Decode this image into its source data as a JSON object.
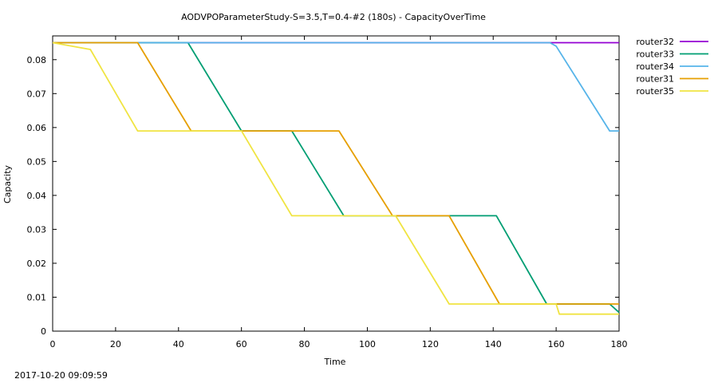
{
  "chart_data": {
    "type": "line",
    "title": "AODVPOParameterStudy-S=3.5,T=0.4-#2 (180s) - CapacityOverTime",
    "xlabel": "Time",
    "ylabel": "Capacity",
    "xlim": [
      0,
      180
    ],
    "ylim": [
      0,
      0.087
    ],
    "xticks": [
      0,
      20,
      40,
      60,
      80,
      100,
      120,
      140,
      160,
      180
    ],
    "yticks": [
      0,
      0.01,
      0.02,
      0.03,
      0.04,
      0.05,
      0.06,
      0.07,
      0.08
    ],
    "ytick_labels": [
      "0",
      "0.01",
      "0.02",
      "0.03",
      "0.04",
      "0.05",
      "0.06",
      "0.07",
      "0.08"
    ],
    "grid": false,
    "legend_position": "outside-right-top",
    "timestamp": "2017-10-20 09:09:59",
    "series": [
      {
        "name": "router32",
        "color": "#9400d3",
        "points": [
          [
            0,
            0.085
          ],
          [
            180,
            0.085
          ]
        ]
      },
      {
        "name": "router33",
        "color": "#009e73",
        "points": [
          [
            0,
            0.085
          ],
          [
            43,
            0.085
          ],
          [
            60,
            0.059
          ],
          [
            76,
            0.059
          ],
          [
            92.5,
            0.034
          ],
          [
            141,
            0.034
          ],
          [
            157,
            0.008
          ],
          [
            177,
            0.008
          ],
          [
            180,
            0.0055
          ]
        ]
      },
      {
        "name": "router34",
        "color": "#56b4e9",
        "points": [
          [
            0,
            0.085
          ],
          [
            158,
            0.085
          ],
          [
            160,
            0.084
          ],
          [
            177,
            0.059
          ],
          [
            180,
            0.059
          ]
        ]
      },
      {
        "name": "router31",
        "color": "#e69f00",
        "points": [
          [
            0,
            0.085
          ],
          [
            27,
            0.085
          ],
          [
            44,
            0.059
          ],
          [
            91,
            0.059
          ],
          [
            108,
            0.034
          ],
          [
            126,
            0.034
          ],
          [
            142,
            0.008
          ],
          [
            180,
            0.008
          ]
        ]
      },
      {
        "name": "router35",
        "color": "#f0e442",
        "points": [
          [
            0,
            0.085
          ],
          [
            12,
            0.083
          ],
          [
            27,
            0.059
          ],
          [
            60,
            0.059
          ],
          [
            76,
            0.034
          ],
          [
            109,
            0.034
          ],
          [
            126,
            0.008
          ],
          [
            160,
            0.008
          ],
          [
            161,
            0.005
          ],
          [
            180,
            0.005
          ]
        ]
      }
    ]
  }
}
